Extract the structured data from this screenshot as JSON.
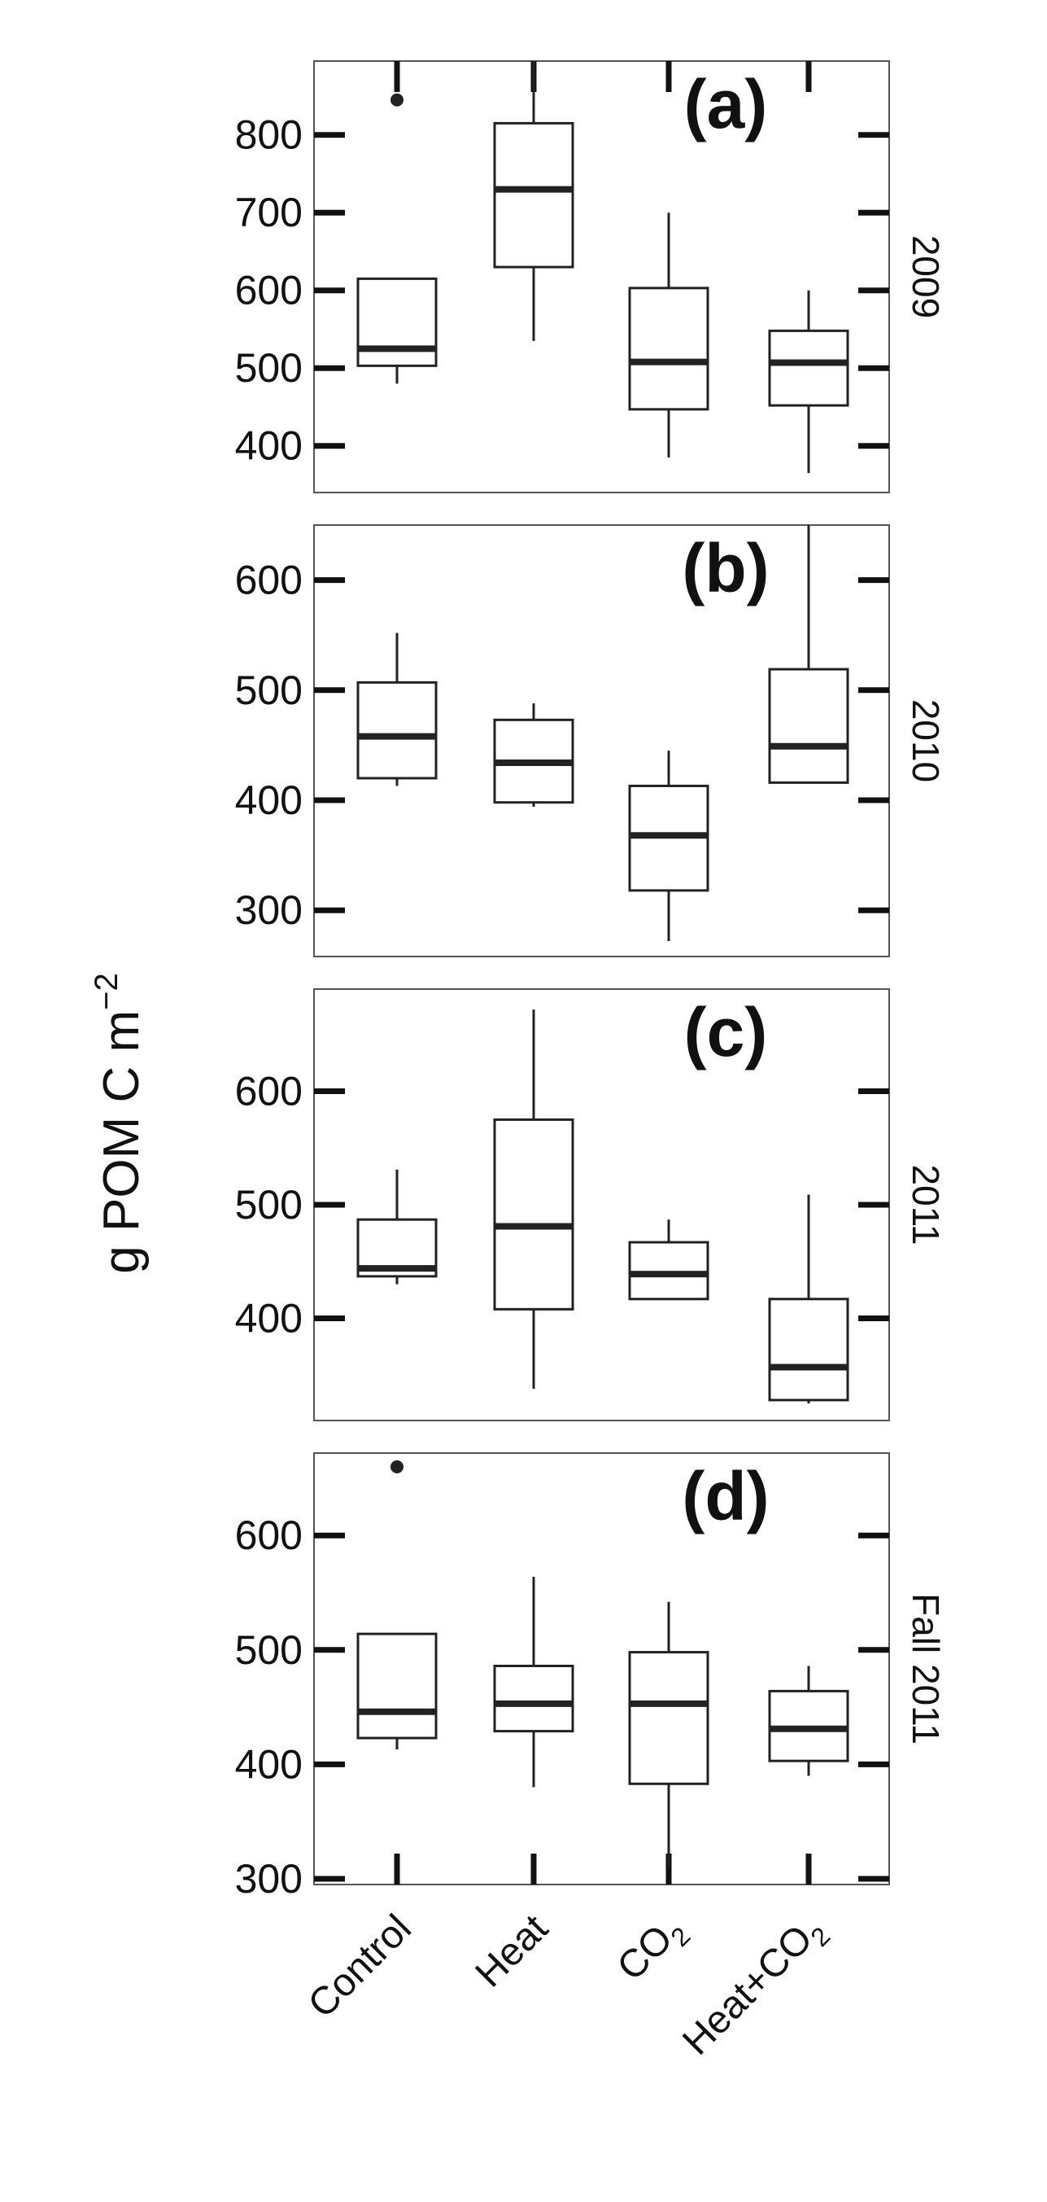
{
  "chart_data": {
    "type": "boxplot",
    "ylabel": "g POM C m",
    "ylabel_superscript": "−2",
    "categories": [
      "Control",
      "Heat",
      "CO",
      "Heat+CO"
    ],
    "category_subscripts": [
      "",
      "",
      "2",
      "2"
    ],
    "grid": false,
    "panels": [
      {
        "tag": "(a)",
        "strip": "2009",
        "ylim": [
          340,
          895
        ],
        "yticks": [
          "400",
          "500",
          "600",
          "700",
          "800"
        ],
        "boxes": [
          {
            "low": 480,
            "q1": 503,
            "median": 525,
            "q3": 615,
            "high": 615,
            "outliers": [
              845
            ],
            "whisker_top_clipped": false
          },
          {
            "low": 535,
            "q1": 630,
            "median": 730,
            "q3": 815,
            "high": 895,
            "outliers": [],
            "whisker_top_clipped": true
          },
          {
            "low": 385,
            "q1": 447,
            "median": 508,
            "q3": 603,
            "high": 700,
            "outliers": []
          },
          {
            "low": 365,
            "q1": 452,
            "median": 507,
            "q3": 548,
            "high": 600,
            "outliers": []
          }
        ]
      },
      {
        "tag": "(b)",
        "strip": "2010",
        "ylim": [
          258,
          650
        ],
        "yticks": [
          "300",
          "400",
          "500",
          "600"
        ],
        "boxes": [
          {
            "low": 413,
            "q1": 420,
            "median": 458,
            "q3": 507,
            "high": 552,
            "outliers": []
          },
          {
            "low": 394,
            "q1": 398,
            "median": 434,
            "q3": 473,
            "high": 488,
            "outliers": []
          },
          {
            "low": 272,
            "q1": 318,
            "median": 368,
            "q3": 413,
            "high": 445,
            "outliers": []
          },
          {
            "low": 415,
            "q1": 416,
            "median": 449,
            "q3": 519,
            "high": 650,
            "outliers": []
          }
        ]
      },
      {
        "tag": "(c)",
        "strip": "2011",
        "ylim": [
          310,
          690
        ],
        "yticks": [
          "400",
          "500",
          "600"
        ],
        "boxes": [
          {
            "low": 430,
            "q1": 437,
            "median": 444,
            "q3": 487,
            "high": 531,
            "outliers": []
          },
          {
            "low": 338,
            "q1": 408,
            "median": 481,
            "q3": 575,
            "high": 672,
            "outliers": []
          },
          {
            "low": 417,
            "q1": 417,
            "median": 439,
            "q3": 467,
            "high": 487,
            "outliers": []
          },
          {
            "low": 325,
            "q1": 328,
            "median": 357,
            "q3": 417,
            "high": 509,
            "outliers": []
          }
        ]
      },
      {
        "tag": "(d)",
        "strip": "Fall 2011",
        "ylim": [
          295,
          672
        ],
        "yticks": [
          "300",
          "400",
          "500",
          "600"
        ],
        "boxes": [
          {
            "low": 413,
            "q1": 423,
            "median": 446,
            "q3": 514,
            "high": 514,
            "outliers": [
              660
            ]
          },
          {
            "low": 380,
            "q1": 429,
            "median": 453,
            "q3": 486,
            "high": 564,
            "outliers": []
          },
          {
            "low": 310,
            "q1": 383,
            "median": 453,
            "q3": 498,
            "high": 542,
            "outliers": []
          },
          {
            "low": 390,
            "q1": 403,
            "median": 431,
            "q3": 464,
            "high": 486,
            "outliers": []
          }
        ]
      }
    ]
  }
}
